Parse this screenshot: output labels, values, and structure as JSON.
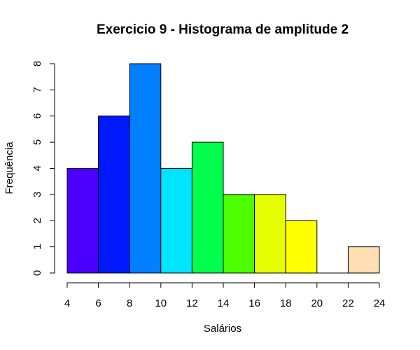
{
  "chart_data": {
    "type": "bar",
    "title": "Exercicio 9 - Histograma de amplitude 2",
    "xlabel": "Salários",
    "ylabel": "Frequência",
    "xlim": [
      4,
      24
    ],
    "ylim": [
      0,
      8
    ],
    "x_ticks": [
      4,
      6,
      8,
      10,
      12,
      14,
      16,
      18,
      20,
      22,
      24
    ],
    "y_ticks": [
      0,
      1,
      2,
      3,
      4,
      5,
      6,
      7,
      8
    ],
    "grid": false,
    "bins": [
      {
        "start": 4,
        "end": 6,
        "value": 4,
        "color": "#4C00FF"
      },
      {
        "start": 6,
        "end": 8,
        "value": 6,
        "color": "#0019FF"
      },
      {
        "start": 8,
        "end": 10,
        "value": 8,
        "color": "#0080FF"
      },
      {
        "start": 10,
        "end": 12,
        "value": 4,
        "color": "#00E5FF"
      },
      {
        "start": 12,
        "end": 14,
        "value": 5,
        "color": "#00FF4D"
      },
      {
        "start": 14,
        "end": 16,
        "value": 3,
        "color": "#4DFF00"
      },
      {
        "start": 16,
        "end": 18,
        "value": 3,
        "color": "#E6FF00"
      },
      {
        "start": 18,
        "end": 20,
        "value": 2,
        "color": "#FFFF00"
      },
      {
        "start": 20,
        "end": 22,
        "value": 0,
        "color": "#FFEA2D"
      },
      {
        "start": 22,
        "end": 24,
        "value": 1,
        "color": "#FFDEB4"
      }
    ]
  }
}
